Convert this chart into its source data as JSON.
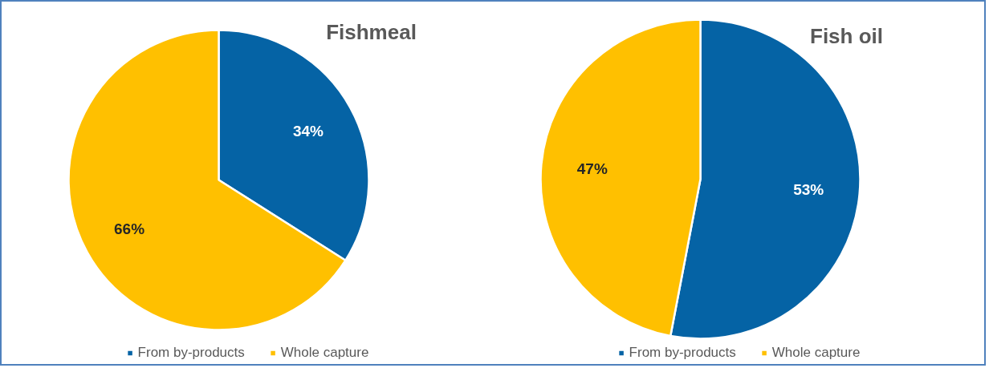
{
  "chart_data": [
    {
      "type": "pie",
      "title": "Fishmeal",
      "categories": [
        "From by-products",
        "Whole capture"
      ],
      "values": [
        34,
        66
      ],
      "colors": [
        "#0563a5",
        "#ffc000"
      ],
      "value_labels": [
        "34%",
        "66%"
      ],
      "legend": "bottom"
    },
    {
      "type": "pie",
      "title": "Fish oil",
      "categories": [
        "From by-products",
        "Whole capture"
      ],
      "values": [
        53,
        47
      ],
      "colors": [
        "#0563a5",
        "#ffc000"
      ],
      "value_labels": [
        "53%",
        "47%"
      ],
      "legend": "bottom"
    }
  ]
}
